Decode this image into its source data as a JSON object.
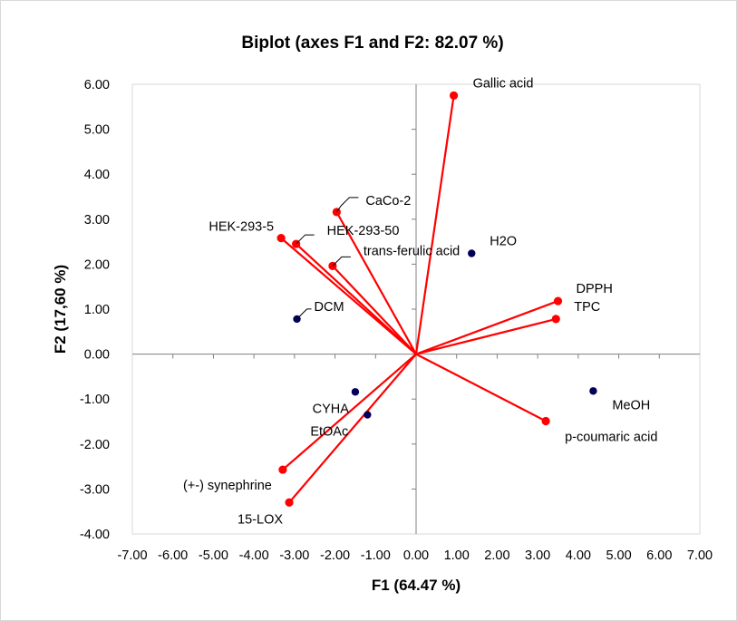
{
  "chart_data": {
    "type": "scatter",
    "title": "Biplot (axes F1 and F2: 82.07 %)",
    "xlabel": "F1 (64.47 %)",
    "ylabel": "F2 (17,60 %)",
    "xlim": [
      -7,
      7
    ],
    "ylim": [
      -4,
      6
    ],
    "x_ticks": [
      "-7.00",
      "-6.00",
      "-5.00",
      "-4.00",
      "-3.00",
      "-2.00",
      "-1.00",
      "0.00",
      "1.00",
      "2.00",
      "3.00",
      "4.00",
      "5.00",
      "6.00",
      "7.00"
    ],
    "y_ticks": [
      "-4.00",
      "-3.00",
      "-2.00",
      "-1.00",
      "0.00",
      "1.00",
      "2.00",
      "3.00",
      "4.00",
      "5.00",
      "6.00"
    ],
    "grid": false,
    "legend": "none",
    "colors": {
      "variables": "#ff0000",
      "observations": "#00005a"
    },
    "series": [
      {
        "name": "",
        "kind": "variables",
        "points": [
          {
            "label": "Gallic acid",
            "x": 0.93,
            "y": 5.75
          },
          {
            "label": "CaCo-2",
            "x": -1.96,
            "y": 3.16
          },
          {
            "label": "HEK-293-5",
            "x": -3.33,
            "y": 2.58
          },
          {
            "label": "HEK-293-50",
            "x": -2.96,
            "y": 2.45
          },
          {
            "label": "trans-ferulic acid",
            "x": -2.06,
            "y": 1.96
          },
          {
            "label": "DPPH",
            "x": 3.5,
            "y": 1.18
          },
          {
            "label": "TPC",
            "x": 3.45,
            "y": 0.78
          },
          {
            "label": "p-coumaric acid",
            "x": 3.2,
            "y": -1.49
          },
          {
            "label": "(+-) synephrine",
            "x": -3.29,
            "y": -2.57
          },
          {
            "label": "15-LOX",
            "x": -3.13,
            "y": -3.3
          }
        ]
      },
      {
        "name": "",
        "kind": "observations",
        "points": [
          {
            "label": "H2O",
            "x": 1.37,
            "y": 2.24
          },
          {
            "label": "DCM",
            "x": -2.94,
            "y": 0.78
          },
          {
            "label": "MeOH",
            "x": 4.37,
            "y": -0.82
          },
          {
            "label": "CYHA",
            "x": -1.5,
            "y": -0.84
          },
          {
            "label": "EtOAc",
            "x": -1.2,
            "y": -1.35
          }
        ]
      }
    ]
  }
}
